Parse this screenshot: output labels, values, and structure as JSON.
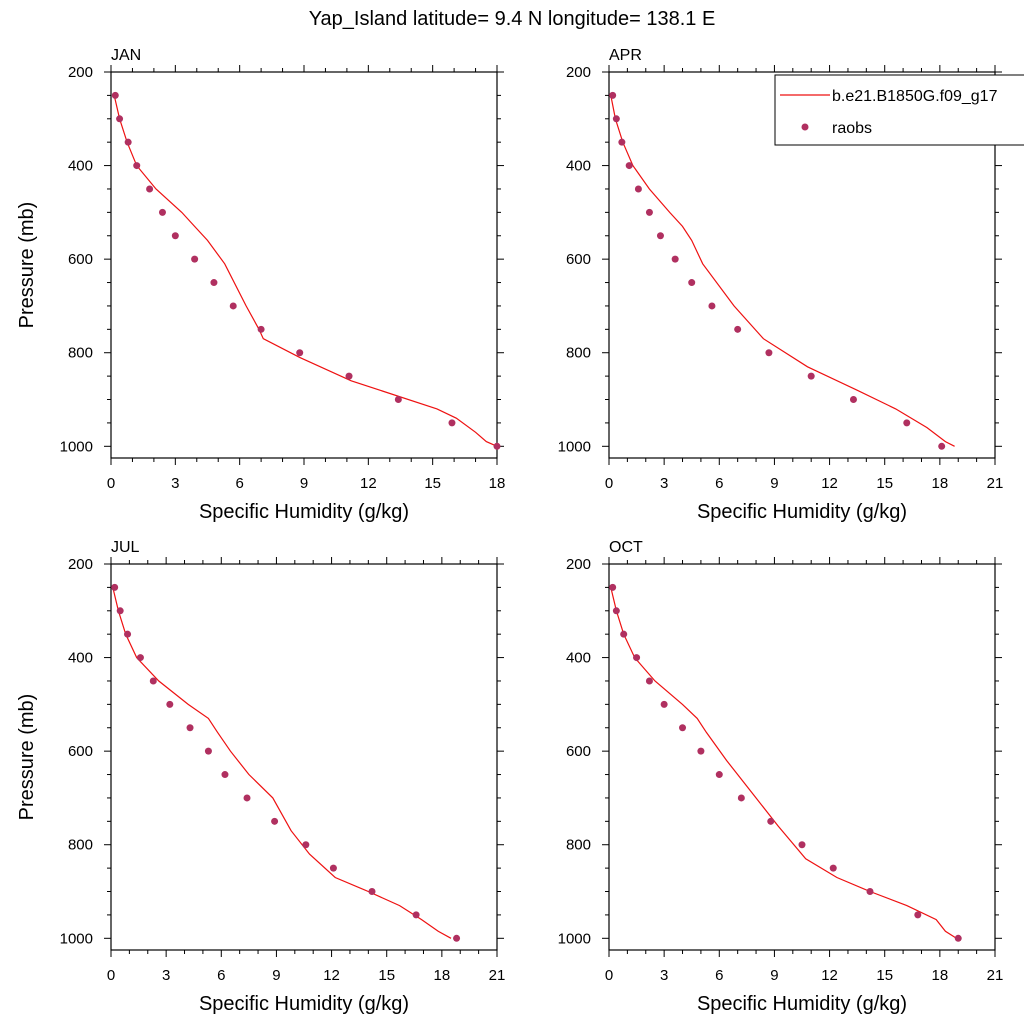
{
  "page_title": "Yap_Island  latitude= 9.4 N longitude= 138.1 E",
  "legend": {
    "model_label": "b.e21.B1850G.f09_g17",
    "obs_label": "raobs",
    "line_color": "#ee1111",
    "marker_color": "#b03060"
  },
  "chart_data": [
    {
      "type": "line",
      "title": "JAN",
      "xlabel": "Specific Humidity (g/kg)",
      "ylabel": "Pressure (mb)",
      "xlim": [
        0,
        18
      ],
      "ylim": [
        1025,
        200
      ],
      "xticks": [
        0,
        3,
        6,
        9,
        12,
        15,
        18
      ],
      "yticks": [
        200,
        400,
        600,
        800,
        1000
      ],
      "series": [
        {
          "name": "b.e21.B1850G.f09_g17",
          "pressure": [
            250,
            300,
            350,
            400,
            450,
            500,
            530,
            560,
            610,
            700,
            750,
            770,
            810,
            860,
            920,
            940,
            970,
            990,
            1000
          ],
          "values": [
            0.15,
            0.4,
            0.75,
            1.2,
            2.1,
            3.3,
            3.9,
            4.5,
            5.3,
            6.3,
            6.9,
            7.1,
            8.8,
            11.2,
            15.2,
            16.1,
            17.0,
            17.5,
            18.0
          ]
        },
        {
          "name": "raobs",
          "pressure": [
            250,
            300,
            350,
            400,
            450,
            500,
            550,
            600,
            650,
            700,
            750,
            800,
            850,
            900,
            950,
            1000
          ],
          "values": [
            0.2,
            0.4,
            0.8,
            1.2,
            1.8,
            2.4,
            3.0,
            3.9,
            4.8,
            5.7,
            7.0,
            8.8,
            11.1,
            13.4,
            15.9,
            18.0
          ]
        }
      ]
    },
    {
      "type": "line",
      "title": "APR",
      "xlabel": "Specific Humidity (g/kg)",
      "ylabel": "",
      "xlim": [
        0,
        21
      ],
      "ylim": [
        1025,
        200
      ],
      "xticks": [
        0,
        3,
        6,
        9,
        12,
        15,
        18,
        21
      ],
      "yticks": [
        200,
        400,
        600,
        800,
        1000
      ],
      "series": [
        {
          "name": "b.e21.B1850G.f09_g17",
          "pressure": [
            250,
            300,
            350,
            400,
            450,
            500,
            530,
            560,
            610,
            700,
            770,
            830,
            880,
            920,
            960,
            990,
            1000
          ],
          "values": [
            0.1,
            0.35,
            0.75,
            1.3,
            2.2,
            3.3,
            4.0,
            4.5,
            5.1,
            6.8,
            8.4,
            10.8,
            13.5,
            15.6,
            17.3,
            18.3,
            18.8
          ]
        },
        {
          "name": "raobs",
          "pressure": [
            250,
            300,
            350,
            400,
            450,
            500,
            550,
            600,
            650,
            700,
            750,
            800,
            850,
            900,
            950,
            1000
          ],
          "values": [
            0.2,
            0.4,
            0.7,
            1.1,
            1.6,
            2.2,
            2.8,
            3.6,
            4.5,
            5.6,
            7.0,
            8.7,
            11.0,
            13.3,
            16.2,
            18.1
          ]
        }
      ]
    },
    {
      "type": "line",
      "title": "JUL",
      "xlabel": "Specific Humidity (g/kg)",
      "ylabel": "Pressure (mb)",
      "xlim": [
        0,
        21
      ],
      "ylim": [
        1025,
        200
      ],
      "xticks": [
        0,
        3,
        6,
        9,
        12,
        15,
        18,
        21
      ],
      "yticks": [
        200,
        400,
        600,
        800,
        1000
      ],
      "series": [
        {
          "name": "b.e21.B1850G.f09_g17",
          "pressure": [
            250,
            300,
            350,
            400,
            450,
            500,
            530,
            560,
            600,
            650,
            700,
            770,
            820,
            870,
            900,
            930,
            960,
            985,
            1000
          ],
          "values": [
            0.1,
            0.4,
            0.8,
            1.4,
            2.6,
            4.2,
            5.3,
            5.8,
            6.5,
            7.5,
            8.8,
            9.8,
            10.8,
            12.2,
            14.0,
            15.7,
            16.9,
            17.8,
            18.5
          ]
        },
        {
          "name": "raobs",
          "pressure": [
            250,
            300,
            350,
            400,
            450,
            500,
            550,
            600,
            650,
            700,
            750,
            800,
            850,
            900,
            950,
            1000
          ],
          "values": [
            0.2,
            0.5,
            0.9,
            1.6,
            2.3,
            3.2,
            4.3,
            5.3,
            6.2,
            7.4,
            8.9,
            10.6,
            12.1,
            14.2,
            16.6,
            18.8
          ]
        }
      ]
    },
    {
      "type": "line",
      "title": "OCT",
      "xlabel": "Specific Humidity (g/kg)",
      "ylabel": "",
      "xlim": [
        0,
        21
      ],
      "ylim": [
        1025,
        200
      ],
      "xticks": [
        0,
        3,
        6,
        9,
        12,
        15,
        18,
        21
      ],
      "yticks": [
        200,
        400,
        600,
        800,
        1000
      ],
      "series": [
        {
          "name": "b.e21.B1850G.f09_g17",
          "pressure": [
            250,
            300,
            350,
            400,
            450,
            500,
            530,
            560,
            620,
            700,
            760,
            830,
            870,
            900,
            930,
            960,
            985,
            1000
          ],
          "values": [
            0.1,
            0.4,
            0.8,
            1.4,
            2.5,
            4.0,
            4.8,
            5.3,
            6.4,
            8.0,
            9.2,
            10.7,
            12.4,
            14.2,
            16.2,
            17.8,
            18.3,
            18.9
          ]
        },
        {
          "name": "raobs",
          "pressure": [
            250,
            300,
            350,
            400,
            450,
            500,
            550,
            600,
            650,
            700,
            750,
            800,
            850,
            900,
            950,
            1000
          ],
          "values": [
            0.2,
            0.4,
            0.8,
            1.5,
            2.2,
            3.0,
            4.0,
            5.0,
            6.0,
            7.2,
            8.8,
            10.5,
            12.2,
            14.2,
            16.8,
            19.0
          ]
        }
      ]
    }
  ]
}
